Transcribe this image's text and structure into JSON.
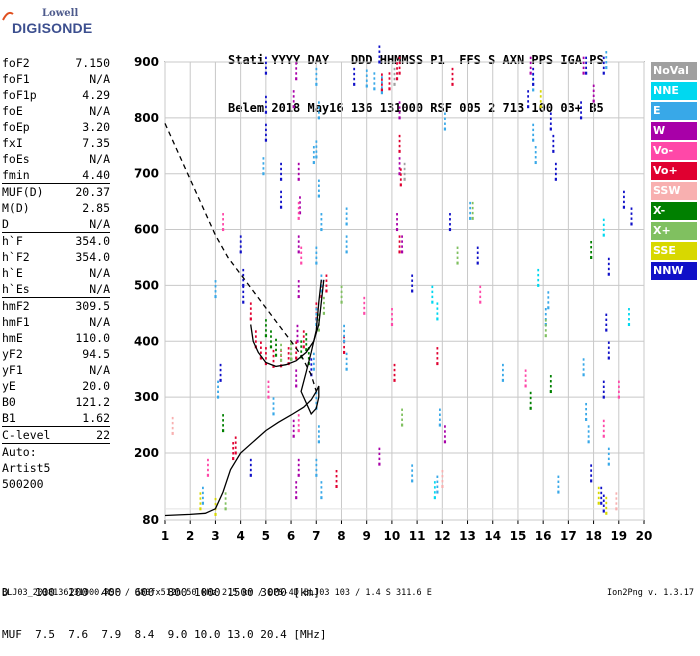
{
  "logo": {
    "company": "Lowell",
    "name": "DIGISONDE"
  },
  "header": {
    "line1": "Stati YYYY DAY   DDD HHMMSS P1  FFS S AXN PPS IGA PS",
    "line2": "Belem 2018 May16 136 131000 RSF 005 2 713 100 03+ B5"
  },
  "params": [
    {
      "label": "foF2",
      "value": "7.150",
      "sep": false
    },
    {
      "label": "foF1",
      "value": "N/A",
      "sep": false
    },
    {
      "label": "foF1p",
      "value": "4.29",
      "sep": false
    },
    {
      "label": "foE",
      "value": "N/A",
      "sep": false
    },
    {
      "label": "foEp",
      "value": "3.20",
      "sep": false
    },
    {
      "label": "fxI",
      "value": "7.35",
      "sep": false
    },
    {
      "label": "foEs",
      "value": "N/A",
      "sep": false
    },
    {
      "label": "fmin",
      "value": "4.40",
      "sep": false
    },
    {
      "label": "MUF(D)",
      "value": "20.37",
      "sep": true
    },
    {
      "label": "M(D)",
      "value": "2.85",
      "sep": false
    },
    {
      "label": "D",
      "value": "N/A",
      "sep": false
    },
    {
      "label": "h`F",
      "value": "354.0",
      "sep": true
    },
    {
      "label": "h`F2",
      "value": "354.0",
      "sep": false
    },
    {
      "label": "h`E",
      "value": "N/A",
      "sep": false
    },
    {
      "label": "h`Es",
      "value": "N/A",
      "sep": false
    },
    {
      "label": "hmF2",
      "value": "309.5",
      "sep": true
    },
    {
      "label": "hmF1",
      "value": "N/A",
      "sep": false
    },
    {
      "label": "hmE",
      "value": "110.0",
      "sep": false
    },
    {
      "label": "yF2",
      "value": "94.5",
      "sep": false
    },
    {
      "label": "yF1",
      "value": "N/A",
      "sep": false
    },
    {
      "label": "yE",
      "value": "20.0",
      "sep": false
    },
    {
      "label": "B0",
      "value": "121.2",
      "sep": false
    },
    {
      "label": "B1",
      "value": "1.62",
      "sep": false
    },
    {
      "label": "C-level",
      "value": "22",
      "sep": true
    },
    {
      "label": "Auto:",
      "value": "",
      "sep": true
    },
    {
      "label": "Artist5",
      "value": "",
      "sep": false
    },
    {
      "label": "500200",
      "value": "",
      "sep": false
    }
  ],
  "legend": [
    {
      "label": "NoVal",
      "color": "#a0a0a0"
    },
    {
      "label": "NNE",
      "color": "#00d8f0"
    },
    {
      "label": "E",
      "color": "#38a8e8"
    },
    {
      "label": "W",
      "color": "#a800a8"
    },
    {
      "label": "Vo-",
      "color": "#ff48a8"
    },
    {
      "label": "Vo+",
      "color": "#e00030"
    },
    {
      "label": "SSW",
      "color": "#f8b0b0"
    },
    {
      "label": "X-",
      "color": "#008000"
    },
    {
      "label": "X+",
      "color": "#80c060"
    },
    {
      "label": "SSE",
      "color": "#d8d800"
    },
    {
      "label": "NNW",
      "color": "#1010c8"
    }
  ],
  "footer": {
    "distance_line": "D    100  200  400  600  800 1000 1500 3000 [km]",
    "muf_line": "MUF  7.5  7.6  7.9  8.4  9.0 10.0 13.0 20.4 [MHz]",
    "file_info": "BLJ03_2018136131000.RSF / 380fx512h 50 kHz 2.5 km / DPS-4D BLJ03 103 / 1.4 S 311.6 E",
    "version": "Ion2Png v. 1.3.17"
  },
  "chart_data": {
    "type": "scatter",
    "xlim": [
      1,
      20
    ],
    "ylim": [
      80,
      900
    ],
    "x_ticks": [
      1,
      2,
      3,
      4,
      5,
      6,
      7,
      8,
      9,
      10,
      11,
      12,
      13,
      14,
      15,
      16,
      17,
      18,
      19,
      20
    ],
    "x_tick_labels": [
      "1",
      "2",
      "3",
      "4",
      "5",
      "6",
      "7",
      "8",
      "9",
      "10",
      "11",
      "12",
      "13",
      "14",
      "15",
      "16",
      "17",
      "18",
      "19",
      "20"
    ],
    "y_ticks": [
      80,
      200,
      300,
      400,
      500,
      600,
      700,
      800,
      900
    ],
    "y_tick_labels": [
      "80",
      "200",
      "300",
      "400",
      "500",
      "600",
      "700",
      "800",
      "900"
    ],
    "grid": true,
    "legend_position": "right",
    "series": [
      {
        "name": "W",
        "color": "#a800a8",
        "points": [
          [
            6.1,
            230
          ],
          [
            6.2,
            320
          ],
          [
            6.25,
            400
          ],
          [
            6.3,
            480
          ],
          [
            6.3,
            560
          ],
          [
            6.35,
            630
          ],
          [
            6.3,
            690
          ],
          [
            6.2,
            120
          ],
          [
            6.3,
            160
          ],
          [
            6.1,
            820
          ],
          [
            6.2,
            870
          ],
          [
            10.2,
            600
          ],
          [
            10.3,
            700
          ],
          [
            10.3,
            800
          ],
          [
            10.4,
            560
          ],
          [
            17.6,
            880
          ],
          [
            15.5,
            880
          ],
          [
            9.5,
            180
          ],
          [
            12.1,
            220
          ],
          [
            18.0,
            830
          ]
        ]
      },
      {
        "name": "Vo+",
        "color": "#e00030",
        "points": [
          [
            4.4,
            440
          ],
          [
            4.6,
            390
          ],
          [
            4.8,
            370
          ],
          [
            5.0,
            360
          ],
          [
            5.3,
            355
          ],
          [
            5.6,
            356
          ],
          [
            5.9,
            360
          ],
          [
            6.2,
            370
          ],
          [
            6.5,
            390
          ],
          [
            7.0,
            440
          ],
          [
            7.2,
            480
          ],
          [
            7.4,
            490
          ],
          [
            9.6,
            850
          ],
          [
            9.9,
            852
          ],
          [
            10.2,
            870
          ],
          [
            10.3,
            880
          ],
          [
            10.3,
            740
          ],
          [
            10.35,
            680
          ],
          [
            10.3,
            560
          ],
          [
            3.7,
            190
          ],
          [
            3.8,
            200
          ],
          [
            7.8,
            140
          ],
          [
            8.1,
            380
          ],
          [
            10.1,
            330
          ],
          [
            12.4,
            860
          ],
          [
            11.8,
            360
          ]
        ]
      },
      {
        "name": "Vo-",
        "color": "#ff48a8",
        "points": [
          [
            6.3,
            620
          ],
          [
            6.4,
            540
          ],
          [
            6.3,
            240
          ],
          [
            2.7,
            160
          ],
          [
            5.1,
            300
          ],
          [
            10.0,
            430
          ],
          [
            13.5,
            470
          ],
          [
            15.3,
            320
          ],
          [
            18.4,
            230
          ],
          [
            8.9,
            450
          ],
          [
            3.3,
            600
          ],
          [
            19.0,
            300
          ]
        ]
      },
      {
        "name": "E",
        "color": "#38a8e8",
        "points": [
          [
            7.0,
            860
          ],
          [
            7.1,
            800
          ],
          [
            7.0,
            730
          ],
          [
            7.1,
            660
          ],
          [
            7.2,
            600
          ],
          [
            7.0,
            540
          ],
          [
            7.2,
            490
          ],
          [
            7.0,
            430
          ],
          [
            6.9,
            350
          ],
          [
            7.0,
            280
          ],
          [
            7.1,
            220
          ],
          [
            7.0,
            160
          ],
          [
            7.2,
            120
          ],
          [
            8.2,
            560
          ],
          [
            8.2,
            610
          ],
          [
            8.1,
            400
          ],
          [
            8.2,
            350
          ],
          [
            9.0,
            857
          ],
          [
            9.3,
            852
          ],
          [
            9.6,
            845
          ],
          [
            11.8,
            130
          ],
          [
            11.9,
            250
          ],
          [
            12.1,
            780
          ],
          [
            13.1,
            620
          ],
          [
            15.6,
            850
          ],
          [
            15.6,
            760
          ],
          [
            15.7,
            720
          ],
          [
            16.2,
            460
          ],
          [
            16.1,
            430
          ],
          [
            16.6,
            130
          ],
          [
            17.6,
            340
          ],
          [
            17.7,
            260
          ],
          [
            17.8,
            220
          ],
          [
            18.5,
            890
          ],
          [
            18.6,
            180
          ],
          [
            2.5,
            110
          ],
          [
            3.1,
            300
          ],
          [
            5.3,
            270
          ],
          [
            6.9,
            720
          ],
          [
            4.9,
            700
          ],
          [
            10.8,
            150
          ],
          [
            14.4,
            330
          ],
          [
            3.0,
            480
          ]
        ]
      },
      {
        "name": "NNE",
        "color": "#00d8f0",
        "points": [
          [
            11.6,
            470
          ],
          [
            11.8,
            440
          ],
          [
            11.7,
            120
          ],
          [
            15.8,
            500
          ],
          [
            18.4,
            590
          ],
          [
            19.4,
            430
          ]
        ]
      },
      {
        "name": "X-",
        "color": "#008000",
        "points": [
          [
            5.0,
            410
          ],
          [
            5.2,
            390
          ],
          [
            5.4,
            375
          ],
          [
            6.0,
            368
          ],
          [
            6.4,
            372
          ],
          [
            6.6,
            385
          ],
          [
            6.7,
            360
          ],
          [
            3.3,
            240
          ],
          [
            15.5,
            280
          ],
          [
            16.3,
            310
          ],
          [
            17.9,
            550
          ]
        ]
      },
      {
        "name": "X+",
        "color": "#80c060",
        "points": [
          [
            5.6,
            366
          ],
          [
            6.0,
            368
          ],
          [
            7.1,
            420
          ],
          [
            7.3,
            450
          ],
          [
            8.0,
            470
          ],
          [
            3.4,
            100
          ],
          [
            10.4,
            250
          ],
          [
            12.6,
            540
          ],
          [
            16.1,
            410
          ],
          [
            13.2,
            620
          ]
        ]
      },
      {
        "name": "SSE",
        "color": "#d8d800",
        "points": [
          [
            2.4,
            100
          ],
          [
            3.0,
            90
          ],
          [
            18.2,
            110
          ],
          [
            18.5,
            92
          ],
          [
            15.9,
            820
          ]
        ]
      },
      {
        "name": "NNW",
        "color": "#1010c8",
        "points": [
          [
            4.0,
            560
          ],
          [
            4.1,
            500
          ],
          [
            4.1,
            470
          ],
          [
            3.2,
            330
          ],
          [
            4.4,
            160
          ],
          [
            5.0,
            880
          ],
          [
            5.0,
            810
          ],
          [
            5.0,
            760
          ],
          [
            5.6,
            690
          ],
          [
            5.6,
            640
          ],
          [
            6.8,
            340
          ],
          [
            8.5,
            860
          ],
          [
            9.5,
            900
          ],
          [
            10.8,
            490
          ],
          [
            12.3,
            600
          ],
          [
            13.4,
            540
          ],
          [
            15.4,
            820
          ],
          [
            15.6,
            860
          ],
          [
            16.3,
            780
          ],
          [
            16.4,
            740
          ],
          [
            16.5,
            690
          ],
          [
            17.5,
            800
          ],
          [
            17.7,
            880
          ],
          [
            18.4,
            880
          ],
          [
            18.6,
            520
          ],
          [
            18.5,
            420
          ],
          [
            18.6,
            370
          ],
          [
            18.4,
            300
          ],
          [
            19.2,
            640
          ],
          [
            19.5,
            610
          ],
          [
            17.9,
            150
          ],
          [
            18.3,
            110
          ],
          [
            18.4,
            96
          ]
        ]
      },
      {
        "name": "SSW",
        "color": "#f8b0b0",
        "points": [
          [
            1.3,
            235
          ],
          [
            12.0,
            140
          ],
          [
            18.9,
            100
          ]
        ]
      },
      {
        "name": "NoVal",
        "color": "#a0a0a0",
        "points": [
          [
            10.1,
            860
          ],
          [
            10.5,
            690
          ]
        ]
      }
    ],
    "curves": {
      "virtual_height_trace": {
        "style": "solid",
        "points": [
          [
            1.0,
            88
          ],
          [
            2.0,
            90
          ],
          [
            2.6,
            92
          ],
          [
            3.0,
            100
          ],
          [
            3.3,
            130
          ],
          [
            3.6,
            170
          ],
          [
            4.0,
            200
          ],
          [
            4.5,
            220
          ],
          [
            5.0,
            240
          ],
          [
            5.5,
            255
          ],
          [
            6.0,
            268
          ],
          [
            6.5,
            282
          ],
          [
            6.8,
            295
          ],
          [
            7.0,
            310
          ],
          [
            7.1,
            320
          ],
          [
            7.1,
            300
          ],
          [
            7.0,
            280
          ],
          [
            6.8,
            270
          ],
          [
            6.4,
            310
          ],
          [
            6.6,
            345
          ],
          [
            6.8,
            380
          ],
          [
            7.0,
            420
          ],
          [
            7.1,
            470
          ],
          [
            7.2,
            510
          ]
        ]
      },
      "fitted_trace": {
        "style": "solid",
        "points": [
          [
            4.4,
            430
          ],
          [
            4.5,
            400
          ],
          [
            4.7,
            380
          ],
          [
            5.0,
            362
          ],
          [
            5.4,
            355
          ],
          [
            5.8,
            358
          ],
          [
            6.2,
            365
          ],
          [
            6.6,
            380
          ],
          [
            6.9,
            400
          ],
          [
            7.1,
            430
          ],
          [
            7.2,
            470
          ],
          [
            7.3,
            510
          ]
        ]
      },
      "profile": {
        "style": "dashed",
        "points": [
          [
            1.0,
            790
          ],
          [
            1.5,
            740
          ],
          [
            2.0,
            690
          ],
          [
            2.5,
            640
          ],
          [
            3.0,
            590
          ],
          [
            3.5,
            550
          ],
          [
            4.0,
            520
          ],
          [
            4.5,
            490
          ],
          [
            5.0,
            460
          ],
          [
            5.5,
            430
          ],
          [
            6.0,
            400
          ],
          [
            6.4,
            375
          ],
          [
            6.8,
            340
          ],
          [
            7.0,
            310
          ]
        ]
      }
    }
  }
}
